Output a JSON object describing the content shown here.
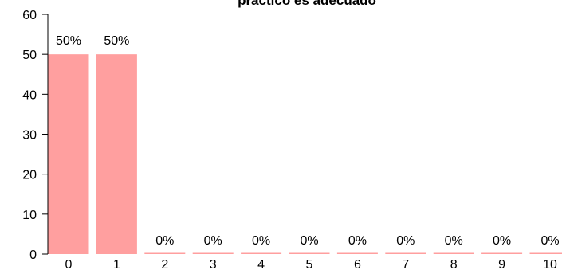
{
  "chart_data": {
    "type": "bar",
    "title": "práctico es adecuado",
    "xlabel": "",
    "ylabel": "",
    "categories": [
      "0",
      "1",
      "2",
      "3",
      "4",
      "5",
      "6",
      "7",
      "8",
      "9",
      "10"
    ],
    "values": [
      50,
      50,
      0,
      0,
      0,
      0,
      0,
      0,
      0,
      0,
      0
    ],
    "data_labels": [
      "50%",
      "50%",
      "0%",
      "0%",
      "0%",
      "0%",
      "0%",
      "0%",
      "0%",
      "0%",
      "0%"
    ],
    "ylim": [
      0,
      60
    ],
    "yticks": [
      0,
      10,
      20,
      30,
      40,
      50,
      60
    ],
    "bar_color": "#ff9f9f",
    "grid": false,
    "legend": "none"
  }
}
